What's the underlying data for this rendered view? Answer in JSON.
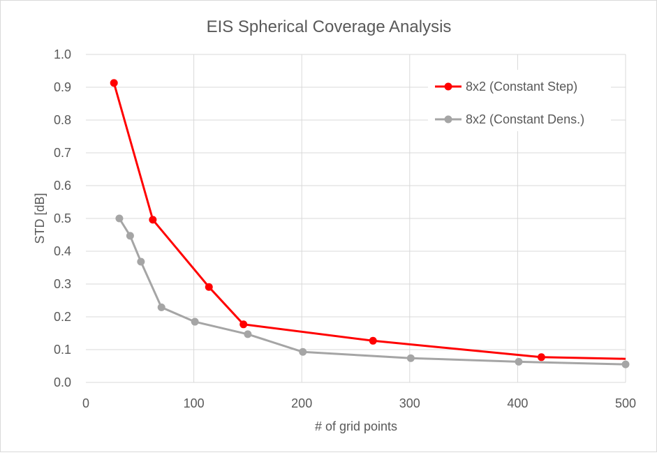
{
  "chart_data": {
    "type": "line",
    "title": "EIS Spherical Coverage Analysis",
    "xlabel": "# of grid points",
    "ylabel": "STD [dB]",
    "xlim": [
      0,
      500
    ],
    "ylim": [
      0,
      1.0
    ],
    "x_ticks": [
      "0",
      "100",
      "200",
      "300",
      "400",
      "500"
    ],
    "y_ticks": [
      "0.0",
      "0.1",
      "0.2",
      "0.3",
      "0.4",
      "0.5",
      "0.6",
      "0.7",
      "0.8",
      "0.9",
      "1.0"
    ],
    "grid": true,
    "legend_position": "top-right",
    "series": [
      {
        "name": "8x2 (Constant Step)",
        "color": "#ff0000",
        "points": [
          {
            "x": 26,
            "y": 0.913
          },
          {
            "x": 62,
            "y": 0.496
          },
          {
            "x": 114,
            "y": 0.291
          },
          {
            "x": 146,
            "y": 0.177
          },
          {
            "x": 266,
            "y": 0.127
          },
          {
            "x": 422,
            "y": 0.077
          }
        ],
        "line_end": {
          "x": 500,
          "y": 0.072
        }
      },
      {
        "name": "8x2 (Constant Dens.)",
        "color": "#a5a5a5",
        "points": [
          {
            "x": 31,
            "y": 0.5
          },
          {
            "x": 41,
            "y": 0.447
          },
          {
            "x": 51,
            "y": 0.368
          },
          {
            "x": 70,
            "y": 0.229
          },
          {
            "x": 101,
            "y": 0.185
          },
          {
            "x": 150,
            "y": 0.147
          },
          {
            "x": 201,
            "y": 0.093
          },
          {
            "x": 301,
            "y": 0.074
          },
          {
            "x": 401,
            "y": 0.063
          },
          {
            "x": 500,
            "y": 0.055
          }
        ]
      }
    ]
  }
}
